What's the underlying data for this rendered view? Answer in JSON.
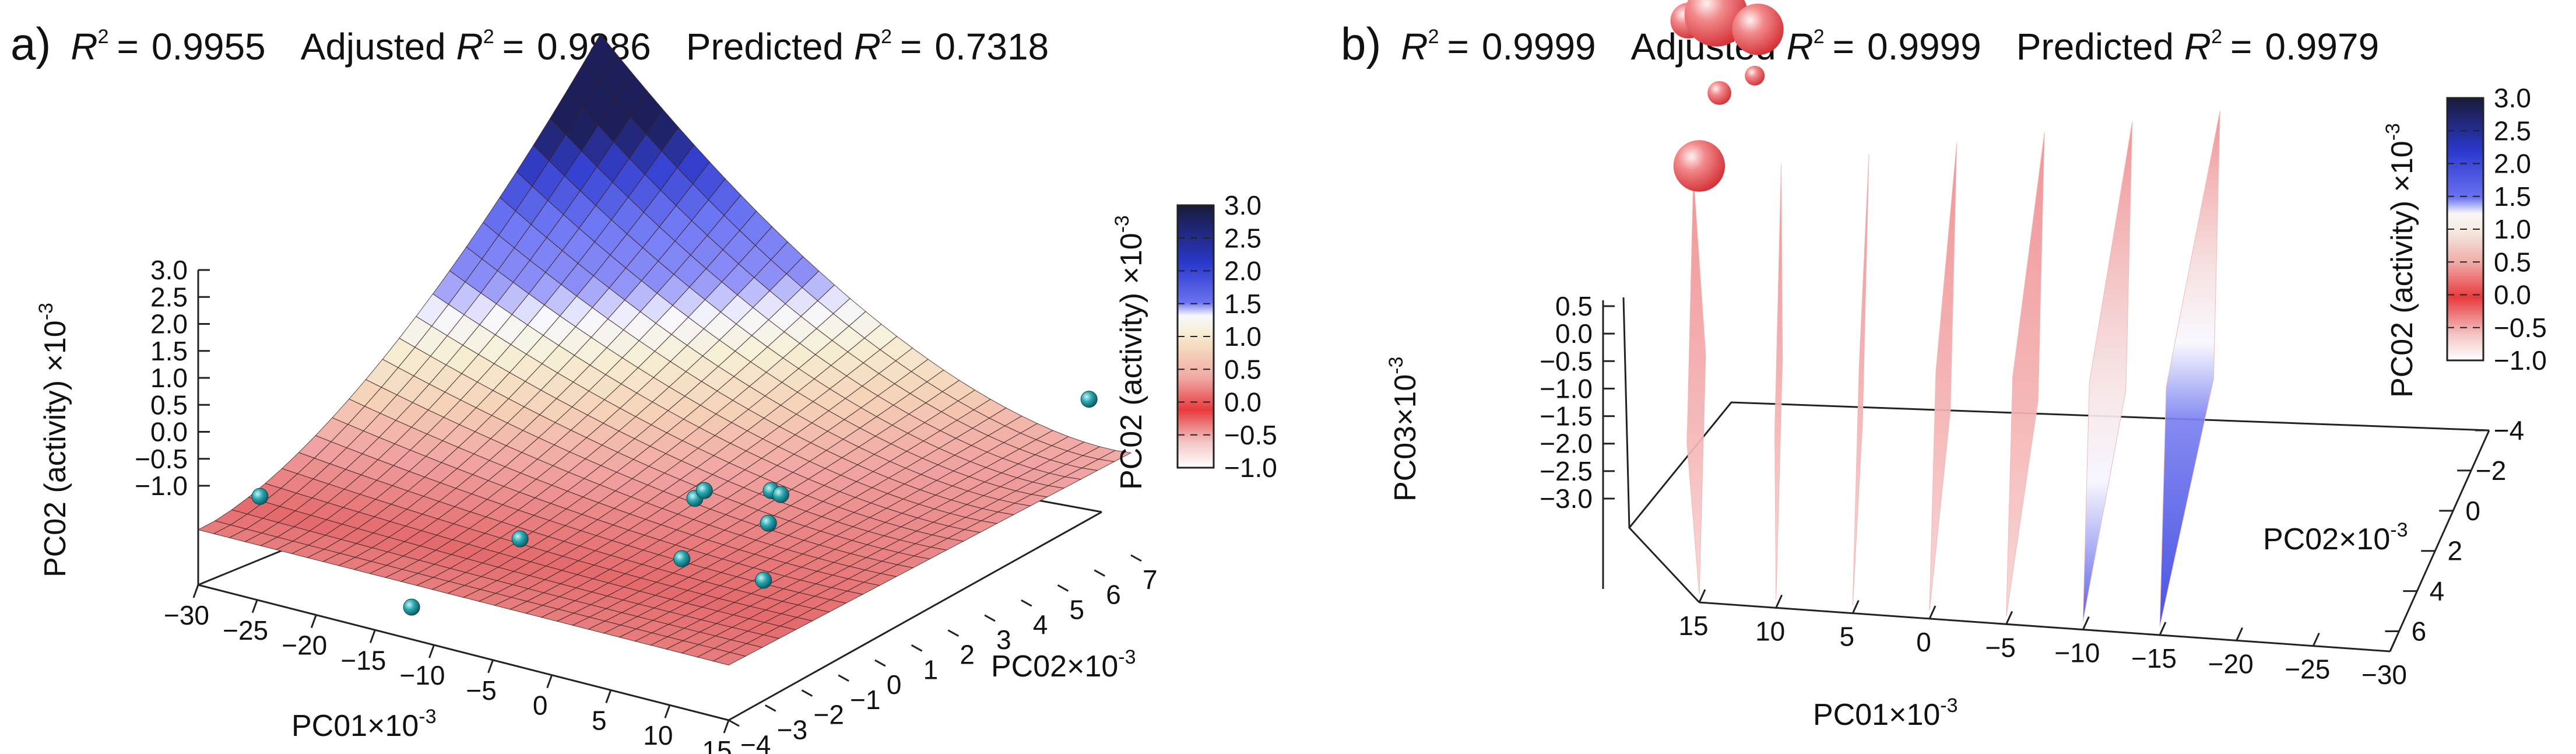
{
  "figure": {
    "panel_a": {
      "letter": "a)",
      "r2_symbol": "R",
      "r2_sup": "2",
      "r2_eq": "=",
      "r2": "0.9955",
      "adjusted_label": "Adjusted",
      "adjusted_r2": "0.9886",
      "predicted_label": "Predicted",
      "predicted_r2": "0.7318"
    },
    "panel_b": {
      "letter": "b)",
      "r2_symbol": "R",
      "r2_sup": "2",
      "r2_eq": "=",
      "r2": "0.9999",
      "adjusted_label": "Adjusted",
      "adjusted_r2": "0.9999",
      "predicted_label": "Predicted",
      "predicted_r2": "0.9979"
    }
  },
  "chart_data": [
    {
      "panel": "a",
      "type": "surface3d",
      "title": "R² = 0.9955  Adjusted R² = 0.9886  Predicted R² = 0.7318",
      "xlabel": "PC01×10",
      "xlabel_exp": "-3",
      "ylabel": "PC02×10",
      "ylabel_exp": "-3",
      "zlabel": "PC02 (activity) ×10",
      "zlabel_exp": "-3",
      "xlim": [
        -30,
        15
      ],
      "ylim": [
        -4,
        7
      ],
      "zlim": [
        -1.0,
        3.0
      ],
      "x_ticks": [
        "−30",
        "−25",
        "−20",
        "−15",
        "−10",
        "−5",
        "0",
        "5",
        "10",
        "15"
      ],
      "x_tick_values": [
        -30,
        -25,
        -20,
        -15,
        -10,
        -5,
        0,
        5,
        10,
        15
      ],
      "y_ticks": [
        "−4",
        "−3",
        "−2",
        "−1",
        "0",
        "1",
        "2",
        "3",
        "4",
        "5",
        "6",
        "7"
      ],
      "y_tick_values": [
        -4,
        -3,
        -2,
        -1,
        0,
        1,
        2,
        3,
        4,
        5,
        6,
        7
      ],
      "z_ticks": [
        "3.0",
        "2.5",
        "2.0",
        "1.5",
        "1.0",
        "0.5",
        "0.0",
        "−0.5",
        "−1.0"
      ],
      "z_tick_values": [
        3.0,
        2.5,
        2.0,
        1.5,
        1.0,
        0.5,
        0.0,
        -0.5,
        -1.0
      ],
      "colorbar": {
        "label": "PC02 (activity) ×10",
        "label_exp": "-3",
        "range": [
          -1.0,
          3.0
        ],
        "ticks": [
          "3.0",
          "2.5",
          "2.0",
          "1.5",
          "1.0",
          "0.5",
          "0.0",
          "−0.5",
          "−1.0"
        ],
        "tick_values": [
          3.0,
          2.5,
          2.0,
          1.5,
          1.0,
          0.5,
          0.0,
          -0.5,
          -1.0
        ],
        "colors": [
          "#ffffff",
          "#e8383c",
          "#f4b2a8",
          "#f5e8c0",
          "#f3f3f3",
          "#5a62f0",
          "#2030c8",
          "#1a1a3a"
        ]
      },
      "surface_color_stops": [
        {
          "z": -1.0,
          "color": "#ffffff"
        },
        {
          "z": -0.6,
          "color": "#f0b6b4"
        },
        {
          "z": -0.2,
          "color": "#e46a6c"
        },
        {
          "z": 0.2,
          "color": "#f0a0a0"
        },
        {
          "z": 0.6,
          "color": "#f5d2b8"
        },
        {
          "z": 1.0,
          "color": "#f6f0d6"
        },
        {
          "z": 1.3,
          "color": "#f7f7ff"
        },
        {
          "z": 1.6,
          "color": "#8c8ef6"
        },
        {
          "z": 2.1,
          "color": "#6f78f4"
        },
        {
          "z": 2.6,
          "color": "#3440d0"
        },
        {
          "z": 3.0,
          "color": "#1c1f5a"
        }
      ],
      "points": [
        {
          "x": -26,
          "y": -3.6,
          "z": 0.2
        },
        {
          "x": -12,
          "y": -1.0,
          "z": -0.3
        },
        {
          "x": -15,
          "y": -3.0,
          "z": -0.9
        },
        {
          "x": -4,
          "y": 1.2,
          "z": 0.1
        },
        {
          "x": -3.5,
          "y": 1.3,
          "z": 0.2
        },
        {
          "x": -2,
          "y": 0.2,
          "z": -0.4
        },
        {
          "x": 0,
          "y": 2.0,
          "z": 0.2
        },
        {
          "x": 0.5,
          "y": 2.1,
          "z": 0.15
        },
        {
          "x": 1,
          "y": 1.6,
          "z": -0.1
        },
        {
          "x": 4,
          "y": 0.5,
          "z": -0.5
        },
        {
          "x": 13,
          "y": 6.5,
          "z": 1.0
        }
      ]
    },
    {
      "panel": "b",
      "type": "slice3d",
      "title": "R² = 0.9999  Adjusted R² = 0.9999  Predicted R² = 0.9979",
      "xlabel": "PC01×10",
      "xlabel_exp": "-3",
      "ylabel": "PC02×10",
      "ylabel_exp": "-3",
      "zlabel": "PC03×10",
      "zlabel_exp": "-3",
      "xlim": [
        15,
        -30
      ],
      "ylim": [
        -4,
        7
      ],
      "zlim": [
        -3.0,
        0.5
      ],
      "x_ticks": [
        "15",
        "10",
        "5",
        "0",
        "−5",
        "−10",
        "−15",
        "−20",
        "−25",
        "−30"
      ],
      "x_tick_values": [
        15,
        10,
        5,
        0,
        -5,
        -10,
        -15,
        -20,
        -25,
        -30
      ],
      "y_ticks": [
        "−4",
        "−2",
        "0",
        "2",
        "4",
        "6"
      ],
      "y_tick_values": [
        -4,
        -2,
        0,
        2,
        4,
        6
      ],
      "z_ticks": [
        "0.5",
        "0.0",
        "−0.5",
        "−1.0",
        "−1.5",
        "−2.0",
        "−2.5",
        "−3.0"
      ],
      "z_tick_values": [
        0.5,
        0.0,
        -0.5,
        -1.0,
        -1.5,
        -2.0,
        -2.5,
        -3.0
      ],
      "slice_x_values": [
        15,
        10,
        5,
        0,
        -5,
        -10,
        -15
      ],
      "colorbar": {
        "label": "PC02 (activity) ×10",
        "label_exp": "-3",
        "range": [
          -1.0,
          3.0
        ],
        "ticks": [
          "3.0",
          "2.5",
          "2.0",
          "1.5",
          "1.0",
          "0.5",
          "0.0",
          "−0.5",
          "−1.0"
        ],
        "tick_values": [
          3.0,
          2.5,
          2.0,
          1.5,
          1.0,
          0.5,
          0.0,
          -0.5,
          -1.0
        ],
        "colors": [
          "#ffffff",
          "#e8383c",
          "#f4b2a8",
          "#f5e8c0",
          "#f3f3f3",
          "#5a62f0",
          "#2030c8",
          "#1a1a3a"
        ]
      },
      "bubbles": [
        {
          "x": 13,
          "y": 0.0,
          "z": 0.45,
          "size": 0.9
        },
        {
          "x": 11,
          "y": -1.0,
          "z": 0.4,
          "size": 1.6
        },
        {
          "x": 9,
          "y": 0.5,
          "z": 0.35,
          "size": 1.3
        },
        {
          "x": 12,
          "y": 2.5,
          "z": -0.2,
          "size": 0.6
        },
        {
          "x": 14,
          "y": 4.5,
          "z": -0.9,
          "size": 1.3
        },
        {
          "x": 9.5,
          "y": 1.5,
          "z": -0.1,
          "size": 0.5
        },
        {
          "x": -26,
          "y": -1.0,
          "z": 0.2,
          "size": 0.7
        }
      ]
    }
  ]
}
